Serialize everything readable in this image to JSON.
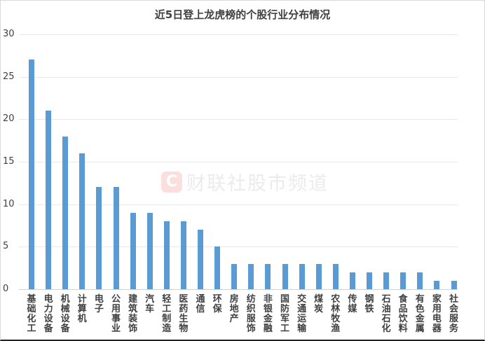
{
  "chart_data": {
    "type": "bar",
    "title": "近5日登上龙虎榜的个股行业分布情况",
    "xlabel": "",
    "ylabel": "",
    "ylim": [
      0,
      30
    ],
    "yticks": [
      0,
      5,
      10,
      15,
      20,
      25,
      30
    ],
    "grid": true,
    "legend": "none",
    "bar_color": "#5b9bd5",
    "categories": [
      "基础化工",
      "电力设备",
      "机械设备",
      "计算机",
      "电子",
      "公用事业",
      "建筑装饰",
      "汽车",
      "轻工制造",
      "医药生物",
      "通信",
      "环保",
      "房地产",
      "纺织服饰",
      "非银金融",
      "国防军工",
      "交通运输",
      "煤炭",
      "农林牧渔",
      "传媒",
      "钢铁",
      "石油石化",
      "食品饮料",
      "有色金属",
      "家用电器",
      "社会服务"
    ],
    "values": [
      27,
      21,
      18,
      16,
      12,
      12,
      9,
      9,
      8,
      8,
      7,
      5,
      3,
      3,
      3,
      3,
      3,
      3,
      3,
      2,
      2,
      2,
      2,
      2,
      1,
      1
    ]
  },
  "watermark": {
    "logo": "C",
    "text": "财联社股市频道"
  }
}
